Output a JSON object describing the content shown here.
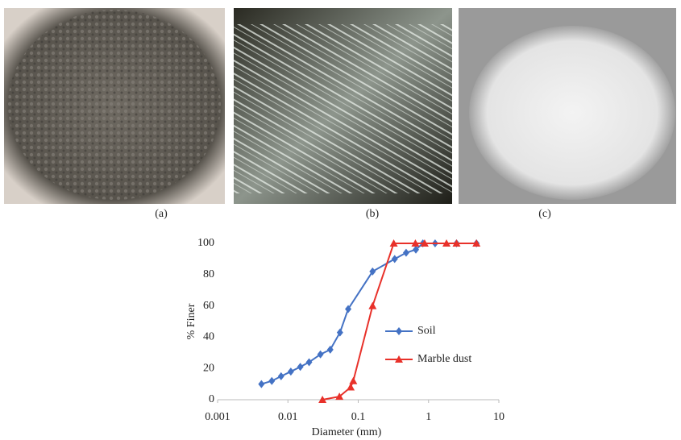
{
  "captions": [
    "(a)",
    "(b)",
    "(c)"
  ],
  "chart_data": {
    "type": "line",
    "x_label": "Diameter (mm)",
    "y_label": "% Finer",
    "xscale": "log",
    "xlim": [
      0.001,
      10
    ],
    "xticks": [
      0.001,
      0.01,
      0.1,
      1,
      10
    ],
    "ylim": [
      0,
      100
    ],
    "yticks": [
      0,
      20,
      40,
      60,
      80,
      100
    ],
    "grid": false,
    "legend": "right",
    "series": [
      {
        "name": "Soil",
        "color": "#4472c4",
        "marker": "diamond",
        "x": [
          0.0042,
          0.0059,
          0.008,
          0.011,
          0.015,
          0.02,
          0.029,
          0.04,
          0.055,
          0.072,
          0.16,
          0.33,
          0.48,
          0.66,
          0.83,
          1.24,
          2.5,
          4.8
        ],
        "values": [
          10,
          12,
          15,
          18,
          21,
          24,
          29,
          32,
          43,
          58,
          82,
          90,
          94,
          96,
          100,
          100,
          100,
          100
        ]
      },
      {
        "name": "Marble dust",
        "color": "#e8312a",
        "marker": "triangle",
        "x": [
          0.031,
          0.054,
          0.078,
          0.085,
          0.16,
          0.32,
          0.65,
          0.88,
          1.8,
          2.5,
          4.8
        ],
        "values": [
          0,
          2,
          8,
          12,
          60,
          100,
          100,
          100,
          100,
          100,
          100
        ]
      }
    ]
  }
}
